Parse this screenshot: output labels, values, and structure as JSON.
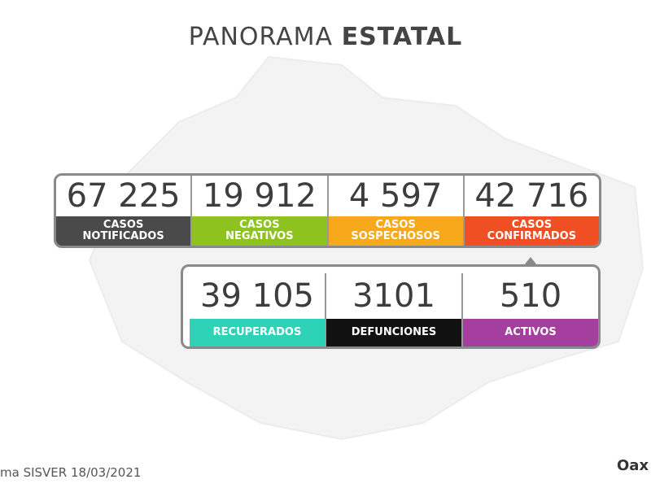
{
  "title": {
    "light": "PANORAMA",
    "bold": "ESTATAL"
  },
  "rows": [
    [
      {
        "number": "67 225",
        "label": [
          "CASOS",
          "NOTIFICADOS"
        ],
        "color": "#4a4a4a"
      },
      {
        "number": "19 912",
        "label": [
          "CASOS",
          "NEGATIVOS"
        ],
        "color": "#8dc21f"
      },
      {
        "number": "4 597",
        "label": [
          "CASOS",
          "SOSPECHOSOS"
        ],
        "color": "#f7a81b"
      },
      {
        "number": "42 716",
        "label": [
          "CASOS",
          "CONFIRMADOS"
        ],
        "color": "#f04e23"
      }
    ],
    [
      {
        "number": "39 105",
        "label": [
          "RECUPERADOS"
        ],
        "color": "#2ed3b7"
      },
      {
        "number": "3101",
        "label": [
          "DEFUNCIONES"
        ],
        "color": "#111111"
      },
      {
        "number": "510",
        "label": [
          "ACTIVOS"
        ],
        "color": "#a43fa0"
      }
    ]
  ],
  "footer": {
    "source": "ma SISVER",
    "date": "18/03/2021",
    "logo": "Oax"
  }
}
